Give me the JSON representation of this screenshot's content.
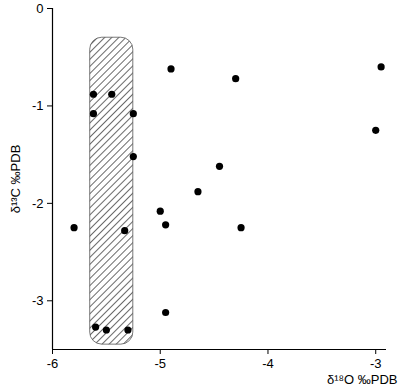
{
  "chart_data": {
    "type": "scatter",
    "x_label": "δ¹⁸O ‰PDB",
    "y_label": "δ¹³C ‰PDB",
    "x": [
      -5.62,
      -5.62,
      -5.45,
      -5.25,
      -5.25,
      -5.33,
      -5.6,
      -5.5,
      -5.3,
      -5.8,
      -4.9,
      -4.3,
      -4.45,
      -4.65,
      -5.0,
      -4.95,
      -4.25,
      -4.95,
      -2.95,
      -3.0
    ],
    "values": [
      -0.88,
      -1.08,
      -0.88,
      -1.08,
      -1.52,
      -2.28,
      -3.27,
      -3.3,
      -3.3,
      -2.25,
      -0.62,
      -0.72,
      -1.62,
      -1.88,
      -2.08,
      -2.22,
      -2.25,
      -3.12,
      -0.6,
      -1.25
    ],
    "color": "#000000",
    "marker": "circle",
    "band": {
      "x": [
        -5.65,
        -5.25
      ],
      "y": [
        -3.45,
        -0.3
      ]
    },
    "xlim": [
      -6,
      -2.9
    ],
    "xticks": [
      -6,
      -5,
      -4,
      -3
    ],
    "ylim": [
      -3.5,
      0
    ],
    "yticks": [
      -3,
      -2,
      -1,
      0
    ],
    "grid": false
  }
}
